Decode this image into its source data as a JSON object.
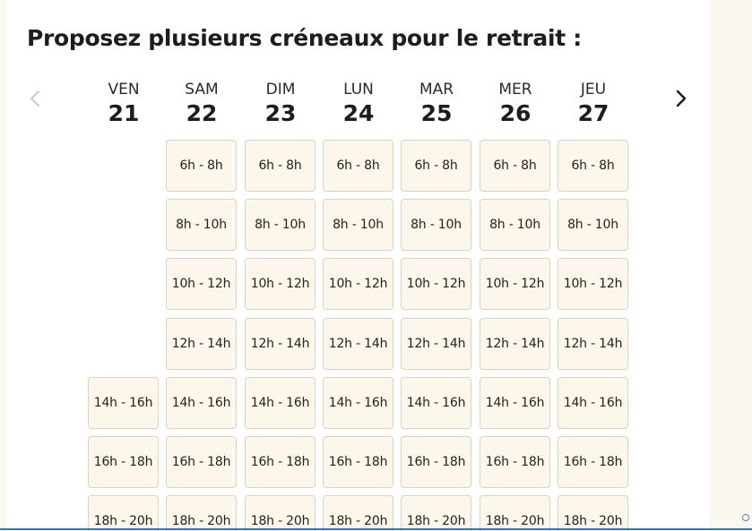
{
  "title": "Proposez plusieurs créneaux pour le retrait :",
  "nav": {
    "prev_icon": "chevron-left-icon",
    "next_icon": "chevron-right-icon",
    "prev_disabled": true
  },
  "days": [
    {
      "name": "VEN",
      "num": "21",
      "slots": [
        "14h - 16h",
        "16h - 18h",
        "18h - 20h"
      ]
    },
    {
      "name": "SAM",
      "num": "22",
      "slots": [
        "6h - 8h",
        "8h - 10h",
        "10h - 12h",
        "12h - 14h",
        "14h - 16h",
        "16h - 18h",
        "18h - 20h"
      ]
    },
    {
      "name": "DIM",
      "num": "23",
      "slots": [
        "6h - 8h",
        "8h - 10h",
        "10h - 12h",
        "12h - 14h",
        "14h - 16h",
        "16h - 18h",
        "18h - 20h"
      ]
    },
    {
      "name": "LUN",
      "num": "24",
      "slots": [
        "6h - 8h",
        "8h - 10h",
        "10h - 12h",
        "12h - 14h",
        "14h - 16h",
        "16h - 18h",
        "18h - 20h"
      ]
    },
    {
      "name": "MAR",
      "num": "25",
      "slots": [
        "6h - 8h",
        "8h - 10h",
        "10h - 12h",
        "12h - 14h",
        "14h - 16h",
        "16h - 18h",
        "18h - 20h"
      ]
    },
    {
      "name": "MER",
      "num": "26",
      "slots": [
        "6h - 8h",
        "8h - 10h",
        "10h - 12h",
        "12h - 14h",
        "14h - 16h",
        "16h - 18h",
        "18h - 20h"
      ]
    },
    {
      "name": "JEU",
      "num": "27",
      "slots": [
        "6h - 8h",
        "8h - 10h",
        "10h - 12h",
        "12h - 14h",
        "14h - 16h",
        "16h - 18h",
        "18h - 20h"
      ]
    }
  ],
  "colors": {
    "slot_background": "#fcf7ea",
    "slot_border": "#d9d3c4",
    "side_panel": "#fbf8ef",
    "accent_line": "#2f72c4",
    "text": "#1d1d1d"
  }
}
